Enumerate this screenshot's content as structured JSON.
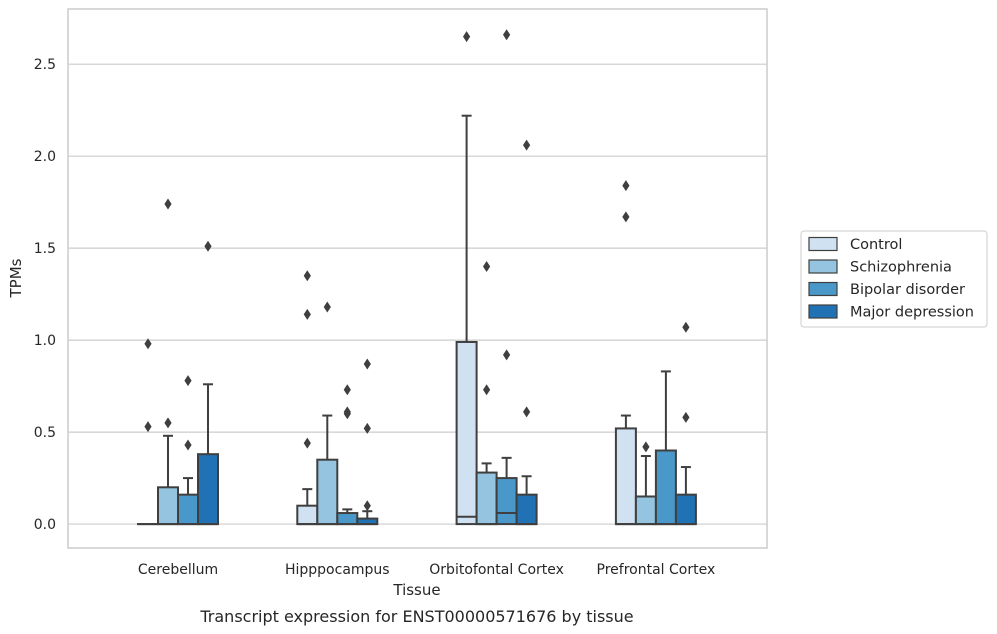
{
  "caption": "Transcript expression for ENST00000571676 by tissue",
  "chart_data": {
    "type": "box",
    "xlabel": "Tissue",
    "ylabel": "TPMs",
    "ylim": [
      -0.13,
      2.8
    ],
    "yticks": [
      0.0,
      0.5,
      1.0,
      1.5,
      2.0,
      2.5
    ],
    "ytick_labels": [
      "0.0",
      "0.5",
      "1.0",
      "1.5",
      "2.0",
      "2.5"
    ],
    "grid": "horizontal",
    "legend_position": "right",
    "categories": [
      "Cerebellum",
      "Hipppocampus",
      "Orbitofontal Cortex",
      "Prefrontal Cortex"
    ],
    "series": [
      {
        "name": "Control",
        "color": "#d0e1f2",
        "boxes": [
          {
            "q1": 0.0,
            "median": 0.0,
            "q3": 0.0,
            "whisker_low": 0.0,
            "whisker_high": 0.0,
            "outliers": [
              0.53,
              0.98
            ]
          },
          {
            "q1": 0.0,
            "median": 0.0,
            "q3": 0.1,
            "whisker_low": 0.0,
            "whisker_high": 0.19,
            "outliers": [
              0.44,
              1.14,
              1.35
            ]
          },
          {
            "q1": 0.0,
            "median": 0.04,
            "q3": 0.99,
            "whisker_low": 0.0,
            "whisker_high": 2.22,
            "outliers": [
              2.65
            ]
          },
          {
            "q1": 0.0,
            "median": 0.0,
            "q3": 0.52,
            "whisker_low": 0.0,
            "whisker_high": 0.59,
            "outliers": [
              1.67,
              1.84
            ]
          }
        ]
      },
      {
        "name": "Schizophrenia",
        "color": "#94c4df",
        "boxes": [
          {
            "q1": 0.0,
            "median": 0.0,
            "q3": 0.2,
            "whisker_low": 0.0,
            "whisker_high": 0.48,
            "outliers": [
              0.55,
              1.74
            ]
          },
          {
            "q1": 0.0,
            "median": 0.0,
            "q3": 0.35,
            "whisker_low": 0.0,
            "whisker_high": 0.59,
            "outliers": [
              1.18
            ]
          },
          {
            "q1": 0.0,
            "median": 0.0,
            "q3": 0.28,
            "whisker_low": 0.0,
            "whisker_high": 0.33,
            "outliers": [
              0.73,
              1.4
            ]
          },
          {
            "q1": 0.0,
            "median": 0.0,
            "q3": 0.15,
            "whisker_low": 0.0,
            "whisker_high": 0.37,
            "outliers": [
              0.42
            ]
          }
        ]
      },
      {
        "name": "Bipolar disorder",
        "color": "#4a98c9",
        "boxes": [
          {
            "q1": 0.0,
            "median": 0.0,
            "q3": 0.16,
            "whisker_low": 0.0,
            "whisker_high": 0.25,
            "outliers": [
              0.43,
              0.78
            ]
          },
          {
            "q1": 0.0,
            "median": 0.0,
            "q3": 0.06,
            "whisker_low": 0.0,
            "whisker_high": 0.08,
            "outliers": [
              0.6,
              0.61,
              0.73
            ]
          },
          {
            "q1": 0.0,
            "median": 0.06,
            "q3": 0.25,
            "whisker_low": 0.0,
            "whisker_high": 0.36,
            "outliers": [
              0.92,
              2.66
            ]
          },
          {
            "q1": 0.0,
            "median": 0.0,
            "q3": 0.4,
            "whisker_low": 0.0,
            "whisker_high": 0.83,
            "outliers": []
          }
        ]
      },
      {
        "name": "Major depression",
        "color": "#2171b5",
        "boxes": [
          {
            "q1": 0.0,
            "median": 0.0,
            "q3": 0.38,
            "whisker_low": 0.0,
            "whisker_high": 0.76,
            "outliers": [
              1.51
            ]
          },
          {
            "q1": 0.0,
            "median": 0.0,
            "q3": 0.03,
            "whisker_low": 0.0,
            "whisker_high": 0.07,
            "outliers": [
              0.1,
              0.52,
              0.87
            ]
          },
          {
            "q1": 0.0,
            "median": 0.0,
            "q3": 0.16,
            "whisker_low": 0.0,
            "whisker_high": 0.26,
            "outliers": [
              0.61,
              2.06
            ]
          },
          {
            "q1": 0.0,
            "median": 0.0,
            "q3": 0.16,
            "whisker_low": 0.0,
            "whisker_high": 0.31,
            "outliers": [
              0.58,
              1.07
            ]
          }
        ]
      }
    ]
  }
}
